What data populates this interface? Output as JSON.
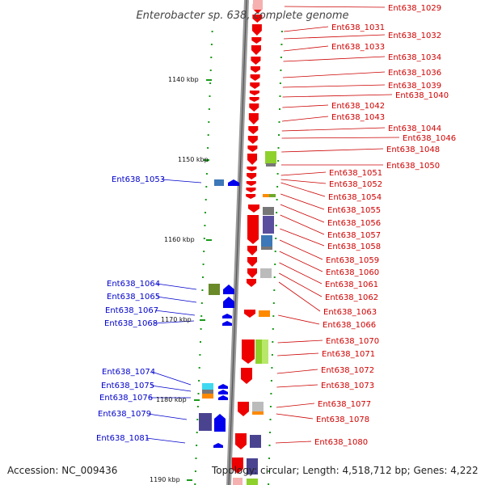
{
  "title": "Enterobacter sp. 638, complete genome",
  "accession": "Accession: NC_009436",
  "topology": "Topology: circular; Length: 4,518,712 bp; Genes: 4,222",
  "kbp_ticks": [
    "1140 kbp",
    "1150 kbp",
    "1160 kbp",
    "1170 kbp",
    "1180 kbp",
    "1190 kbp"
  ],
  "right_labels": [
    "Ent638_1029",
    "Ent638_1031",
    "Ent638_1032",
    "Ent638_1033",
    "Ent638_1034",
    "Ent638_1036",
    "Ent638_1039",
    "Ent638_1040",
    "Ent638_1042",
    "Ent638_1043",
    "Ent638_1044",
    "Ent638_1046",
    "Ent638_1048",
    "Ent638_1050",
    "Ent638_1051",
    "Ent638_1052",
    "Ent638_1054",
    "Ent638_1055",
    "Ent638_1056",
    "Ent638_1057",
    "Ent638_1058",
    "Ent638_1059",
    "Ent638_1060",
    "Ent638_1061",
    "Ent638_1062",
    "Ent638_1063",
    "Ent638_1066",
    "Ent638_1070",
    "Ent638_1071",
    "Ent638_1072",
    "Ent638_1073",
    "Ent638_1077",
    "Ent638_1078",
    "Ent638_1080"
  ],
  "left_labels": [
    "Ent638_1053",
    "Ent638_1064",
    "Ent638_1065",
    "Ent638_1067",
    "Ent638_1068",
    "Ent638_1074",
    "Ent638_1075",
    "Ent638_1076",
    "Ent638_1079",
    "Ent638_1081"
  ],
  "colors": {
    "forward": "#ee0000",
    "reverse": "#0000ee",
    "backbone": "#888888",
    "right_label": "#d10000",
    "left_label": "#0000cc",
    "tick": "#1a9a1a"
  }
}
